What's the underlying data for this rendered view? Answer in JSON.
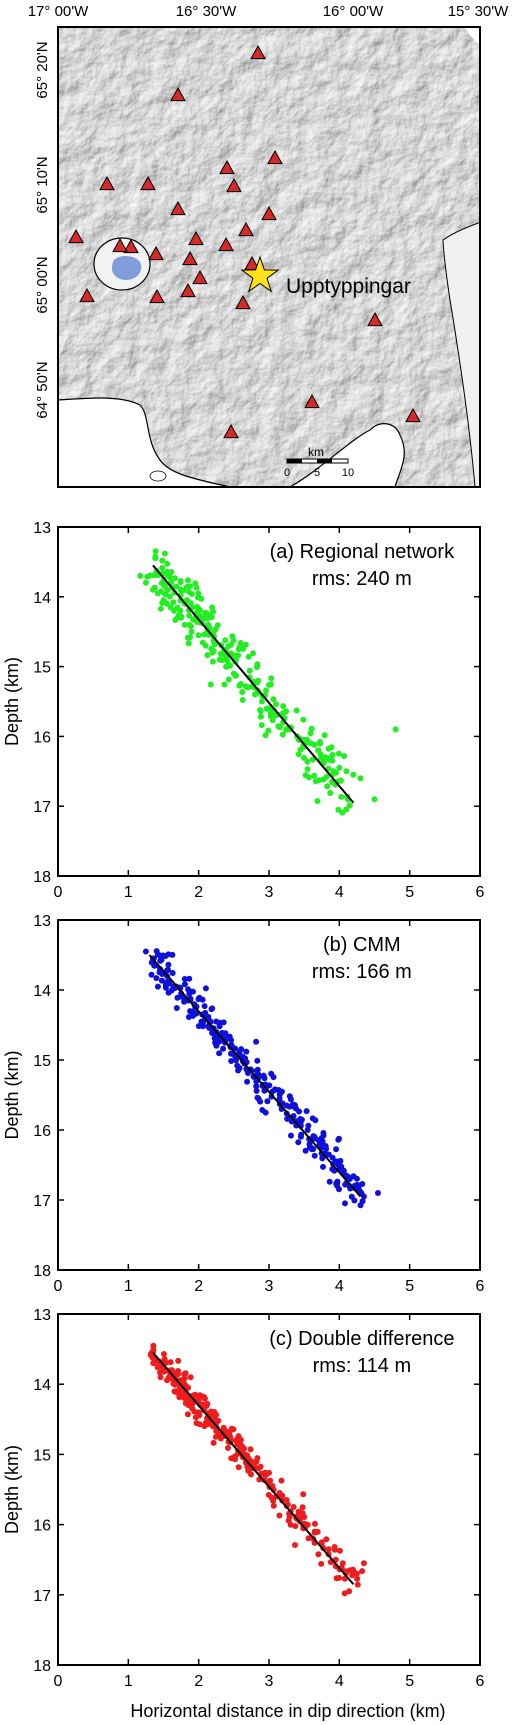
{
  "map": {
    "lon_ticks": [
      "17° 00'W",
      "16° 30'W",
      "16° 00'W",
      "15° 30'W"
    ],
    "lat_ticks": [
      "65° 20'N",
      "65° 10'N",
      "65° 00'N",
      "64° 50'N"
    ],
    "star_label": "Upptyppingar",
    "scale_unit": "km",
    "scale_ticks": [
      "0",
      "5",
      "10"
    ],
    "colors": {
      "station": "#d42a2a",
      "star": "#ffe21a",
      "lake": "#7f9edb",
      "land": "#dcdcdc"
    },
    "station_count": 27
  },
  "shared": {
    "ylabel": "Depth (km)",
    "xlabel": "Horizontal distance in dip direction (km)"
  },
  "chart_data": [
    {
      "type": "scatter",
      "title": "(a) Regional network",
      "subtitle": "rms: 240 m",
      "color": "#22ee22",
      "xlim": [
        0,
        6
      ],
      "ylim": [
        18,
        13
      ],
      "x_ticks": [
        "0",
        "1",
        "2",
        "3",
        "4",
        "5",
        "6"
      ],
      "y_ticks": [
        "13",
        "14",
        "15",
        "16",
        "17",
        "18"
      ],
      "fit_line": [
        [
          1.35,
          13.55
        ],
        [
          4.2,
          16.95
        ]
      ],
      "points_x": [
        1.17,
        1.25,
        1.35,
        1.42,
        1.5,
        1.55,
        1.6,
        1.65,
        1.7,
        1.75,
        1.8,
        1.9,
        2.0,
        2.1,
        2.2,
        2.3,
        2.4,
        2.5,
        2.6,
        2.7,
        2.8,
        2.9,
        3.0,
        3.1,
        3.2,
        3.3,
        3.4,
        3.5,
        3.6,
        3.7,
        3.8,
        3.9,
        4.0,
        4.1,
        4.2,
        4.3,
        4.5,
        4.8
      ],
      "points_y": [
        13.7,
        13.8,
        13.9,
        13.95,
        14.05,
        14.1,
        14.15,
        14.2,
        14.3,
        14.3,
        14.4,
        14.5,
        14.55,
        14.7,
        14.8,
        14.9,
        15.0,
        15.1,
        15.25,
        15.3,
        15.4,
        15.5,
        15.6,
        15.7,
        15.8,
        15.9,
        16.0,
        16.05,
        16.1,
        16.2,
        16.3,
        16.35,
        16.45,
        16.5,
        16.55,
        16.6,
        16.9,
        15.9
      ],
      "n_points": 300
    },
    {
      "type": "scatter",
      "title": "(b) CMM",
      "subtitle": "rms: 166 m",
      "color": "#1010dd",
      "xlim": [
        0,
        6
      ],
      "ylim": [
        18,
        13
      ],
      "x_ticks": [
        "0",
        "1",
        "2",
        "3",
        "4",
        "5",
        "6"
      ],
      "y_ticks": [
        "13",
        "14",
        "15",
        "16",
        "17",
        "18"
      ],
      "fit_line": [
        [
          1.3,
          13.5
        ],
        [
          4.3,
          16.95
        ]
      ],
      "points_x": [
        1.25,
        1.35,
        1.45,
        1.55,
        1.65,
        1.75,
        1.85,
        1.95,
        2.05,
        2.15,
        2.25,
        2.35,
        2.45,
        2.55,
        2.65,
        2.75,
        2.85,
        2.95,
        3.05,
        3.15,
        3.25,
        3.35,
        3.45,
        3.55,
        3.65,
        3.75,
        3.85,
        3.95,
        4.05,
        4.15,
        4.25,
        4.35,
        4.55
      ],
      "points_y": [
        13.45,
        13.55,
        13.7,
        13.8,
        13.95,
        14.05,
        14.15,
        14.25,
        14.35,
        14.5,
        14.6,
        14.7,
        14.8,
        14.95,
        15.05,
        15.15,
        15.25,
        15.35,
        15.45,
        15.55,
        15.65,
        15.8,
        15.9,
        16.0,
        16.1,
        16.25,
        16.35,
        16.45,
        16.6,
        16.7,
        16.8,
        16.95,
        16.9
      ],
      "n_points": 300
    },
    {
      "type": "scatter",
      "title": "(c) Double difference",
      "subtitle": "rms: 114 m",
      "color": "#ee1c1c",
      "xlim": [
        0,
        6
      ],
      "ylim": [
        18,
        13
      ],
      "x_ticks": [
        "0",
        "1",
        "2",
        "3",
        "4",
        "5",
        "6"
      ],
      "y_ticks": [
        "13",
        "14",
        "15",
        "16",
        "17",
        "18"
      ],
      "fit_line": [
        [
          1.35,
          13.55
        ],
        [
          4.2,
          16.85
        ]
      ],
      "points_x": [
        1.35,
        1.45,
        1.55,
        1.65,
        1.75,
        1.85,
        1.95,
        2.05,
        2.15,
        2.25,
        2.35,
        2.45,
        2.55,
        2.65,
        2.75,
        2.85,
        2.95,
        3.05,
        3.15,
        3.25,
        3.35,
        3.45,
        3.55,
        3.65,
        3.75,
        3.85,
        3.95,
        4.05,
        4.15,
        4.25,
        4.35
      ],
      "points_y": [
        13.55,
        13.7,
        13.8,
        13.85,
        14.0,
        14.05,
        14.15,
        14.3,
        14.45,
        14.55,
        14.65,
        14.75,
        14.85,
        15.0,
        15.1,
        15.2,
        15.3,
        15.45,
        15.55,
        15.65,
        15.75,
        15.9,
        16.0,
        16.1,
        16.25,
        16.35,
        16.5,
        16.55,
        16.65,
        16.7,
        16.55
      ],
      "n_points": 300
    }
  ]
}
